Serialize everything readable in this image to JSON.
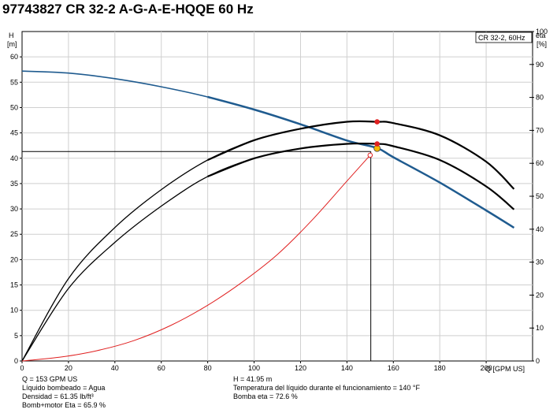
{
  "title": "97743827 CR 32-2 A-G-A-E-HQQE 60 Hz",
  "colors": {
    "head_curve": "#1f5b8f",
    "eta_curve": "#000000",
    "npsh_curve": "#e02020",
    "marker_duty": "#f5b800",
    "marker_point": "#e02020"
  },
  "chart_data": {
    "type": "line",
    "legend": "CR 32-2, 60Hz",
    "legend_position": "top-right",
    "grid": true,
    "x_axis": {
      "label": "Q [GPM US]",
      "range": [
        0,
        220
      ],
      "ticks": [
        0,
        20,
        40,
        60,
        80,
        100,
        120,
        140,
        160,
        180,
        200
      ]
    },
    "y_left": {
      "label_line1": "H",
      "label_line2": "[m]",
      "range": [
        0,
        65
      ],
      "ticks": [
        0,
        5,
        10,
        15,
        20,
        25,
        30,
        35,
        40,
        45,
        50,
        55,
        60
      ]
    },
    "y_right": {
      "label_line1": "eta",
      "label_line2": "[%]",
      "range": [
        0,
        100
      ],
      "ticks": [
        0,
        10,
        20,
        30,
        40,
        50,
        60,
        70,
        80,
        90,
        100
      ]
    },
    "series": [
      {
        "key": "head",
        "axis": "left",
        "x": [
          0,
          20,
          40,
          60,
          80,
          100,
          120,
          140,
          153,
          160,
          180,
          200,
          212
        ],
        "y": [
          57.2,
          56.8,
          55.7,
          54.1,
          52.1,
          49.6,
          46.7,
          43.5,
          42.0,
          40.2,
          35.2,
          29.7,
          26.3
        ]
      },
      {
        "key": "pump_eta",
        "axis": "right",
        "x": [
          0,
          20,
          40,
          60,
          80,
          100,
          120,
          140,
          153,
          160,
          180,
          200,
          212
        ],
        "y": [
          0,
          25,
          40.5,
          52,
          61,
          67,
          70.5,
          72.6,
          72.6,
          72.2,
          68.5,
          60.5,
          52.2
        ]
      },
      {
        "key": "total_eta",
        "axis": "right",
        "x": [
          0,
          20,
          40,
          60,
          80,
          100,
          120,
          140,
          153,
          160,
          180,
          200,
          212
        ],
        "y": [
          0,
          22,
          36,
          47,
          56,
          61.5,
          64.5,
          65.9,
          65.9,
          65.2,
          61,
          53,
          46
        ]
      },
      {
        "key": "npsh",
        "axis": "left",
        "x": [
          0,
          17,
          32,
          48,
          64,
          80,
          95,
          110,
          125,
          140,
          150
        ],
        "y": [
          0,
          0.8,
          2,
          4,
          7,
          11,
          15.6,
          21,
          27.8,
          35.5,
          40.6
        ]
      }
    ],
    "duty_point": {
      "x": 153,
      "y": 41.95
    },
    "eta_points": [
      72.6,
      65.9
    ]
  },
  "info": {
    "q": "Q = 153 GPM US",
    "liquid": "Líquido bombeado = Agua",
    "density": "Densidad = 61.35 lb/ft³",
    "bm_eta": "Bomb+motor Eta = 65.9 %",
    "h": "H = 41.95 m",
    "temp": "Temperatura del líquido durante el funcionamiento = 140 °F",
    "pump_eta": "Bomba eta = 72.6 %"
  }
}
